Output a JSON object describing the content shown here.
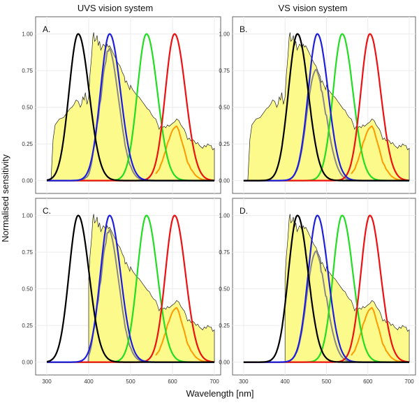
{
  "titles": {
    "left_column": "UVS vision system",
    "right_column": "VS vision system",
    "x_axis": "Wavelength [nm]",
    "y_axis": "Normalised sensitivity"
  },
  "axes": {
    "x_ticks": [
      300,
      400,
      500,
      600,
      700
    ],
    "y_ticks": [
      0.0,
      0.25,
      0.5,
      0.75,
      1.0
    ],
    "y_tick_labels": [
      "0.00",
      "0.25",
      "0.50",
      "0.75",
      "1.00"
    ],
    "xlim": [
      290,
      705
    ],
    "ylim": [
      -0.04,
      1.06
    ]
  },
  "chart_data": [
    {
      "type": "line",
      "panel_label": "A.",
      "column": "UVS vision system",
      "series": [
        {
          "id": "uv_cone",
          "peak": 375,
          "color": "#000000"
        },
        {
          "id": "s_cone",
          "peak": 450,
          "color": "#1f1fdd"
        },
        {
          "id": "m_cone",
          "peak": 538,
          "color": "#22dd22"
        },
        {
          "id": "l_cone",
          "peak": 605,
          "color": "#ee1111"
        }
      ],
      "filtered": {
        "s_cone": [
          450,
          0.92
        ]
      },
      "irradiance_cutoff": 310
    },
    {
      "type": "line",
      "panel_label": "B.",
      "column": "VS vision system",
      "series": [
        {
          "id": "v_cone",
          "peak": 430,
          "color": "#000000"
        },
        {
          "id": "s_cone",
          "peak": 478,
          "color": "#1f1fdd"
        },
        {
          "id": "m_cone",
          "peak": 538,
          "color": "#22dd22"
        },
        {
          "id": "l_cone",
          "peak": 605,
          "color": "#ee1111"
        }
      ],
      "irradiance_cutoff": 310
    },
    {
      "type": "line",
      "panel_label": "C.",
      "column": "UVS vision system",
      "series": [
        {
          "id": "uv_cone",
          "peak": 375,
          "color": "#000000"
        },
        {
          "id": "s_cone",
          "peak": 450,
          "color": "#1f1fdd"
        },
        {
          "id": "m_cone",
          "peak": 538,
          "color": "#22dd22"
        },
        {
          "id": "l_cone",
          "peak": 605,
          "color": "#ee1111"
        }
      ],
      "irradiance_cutoff": 400
    },
    {
      "type": "line",
      "panel_label": "D.",
      "column": "VS vision system",
      "series": [
        {
          "id": "v_cone",
          "peak": 430,
          "color": "#000000"
        },
        {
          "id": "s_cone",
          "peak": 478,
          "color": "#1f1fdd"
        },
        {
          "id": "m_cone",
          "peak": 538,
          "color": "#22dd22"
        },
        {
          "id": "l_cone",
          "peak": 605,
          "color": "#ee1111"
        }
      ],
      "irradiance_cutoff": 400
    }
  ],
  "irradiance_spectrum": [
    [
      310,
      0.0
    ],
    [
      315,
      0.28
    ],
    [
      320,
      0.38
    ],
    [
      330,
      0.42
    ],
    [
      340,
      0.43
    ],
    [
      345,
      0.45
    ],
    [
      350,
      0.47
    ],
    [
      355,
      0.49
    ],
    [
      360,
      0.5
    ],
    [
      365,
      0.52
    ],
    [
      370,
      0.55
    ],
    [
      375,
      0.54
    ],
    [
      380,
      0.5
    ],
    [
      383,
      0.52
    ],
    [
      386,
      0.57
    ],
    [
      389,
      0.55
    ],
    [
      392,
      0.6
    ],
    [
      396,
      0.52
    ],
    [
      400,
      0.57
    ],
    [
      403,
      0.72
    ],
    [
      407,
      0.85
    ],
    [
      410,
      0.98
    ],
    [
      412,
      1.01
    ],
    [
      414,
      0.95
    ],
    [
      417,
      0.96
    ],
    [
      420,
      0.99
    ],
    [
      423,
      0.92
    ],
    [
      426,
      0.95
    ],
    [
      429,
      0.89
    ],
    [
      432,
      0.91
    ],
    [
      435,
      0.93
    ],
    [
      438,
      0.92
    ],
    [
      441,
      0.9
    ],
    [
      444,
      0.93
    ],
    [
      447,
      0.91
    ],
    [
      450,
      0.92
    ],
    [
      455,
      0.89
    ],
    [
      460,
      0.86
    ],
    [
      465,
      0.83
    ],
    [
      470,
      0.8
    ],
    [
      475,
      0.78
    ],
    [
      480,
      0.74
    ],
    [
      485,
      0.71
    ],
    [
      487,
      0.67
    ],
    [
      490,
      0.68
    ],
    [
      494,
      0.65
    ],
    [
      498,
      0.62
    ],
    [
      500,
      0.65
    ],
    [
      505,
      0.62
    ],
    [
      510,
      0.6
    ],
    [
      515,
      0.58
    ],
    [
      520,
      0.57
    ],
    [
      525,
      0.55
    ],
    [
      530,
      0.53
    ],
    [
      535,
      0.51
    ],
    [
      540,
      0.49
    ],
    [
      545,
      0.48
    ],
    [
      550,
      0.45
    ],
    [
      555,
      0.43
    ],
    [
      560,
      0.42
    ],
    [
      565,
      0.38
    ],
    [
      568,
      0.35
    ],
    [
      572,
      0.37
    ],
    [
      576,
      0.36
    ],
    [
      580,
      0.37
    ],
    [
      584,
      0.36
    ],
    [
      588,
      0.38
    ],
    [
      592,
      0.37
    ],
    [
      596,
      0.38
    ],
    [
      600,
      0.39
    ],
    [
      605,
      0.4
    ],
    [
      610,
      0.42
    ],
    [
      615,
      0.41
    ],
    [
      620,
      0.38
    ],
    [
      625,
      0.36
    ],
    [
      628,
      0.35
    ],
    [
      632,
      0.32
    ],
    [
      636,
      0.28
    ],
    [
      640,
      0.29
    ],
    [
      644,
      0.27
    ],
    [
      648,
      0.28
    ],
    [
      652,
      0.27
    ],
    [
      656,
      0.25
    ],
    [
      660,
      0.26
    ],
    [
      664,
      0.24
    ],
    [
      668,
      0.23
    ],
    [
      672,
      0.22
    ],
    [
      676,
      0.24
    ],
    [
      680,
      0.23
    ],
    [
      684,
      0.25
    ],
    [
      688,
      0.24
    ],
    [
      692,
      0.24
    ],
    [
      696,
      0.21
    ],
    [
      700,
      0.22
    ]
  ],
  "colors": {
    "irradiance_fill": "#fdfa8c",
    "irradiance_stroke": "#222222",
    "filtered_curve": "#888888",
    "orange_tail": "#ff9900",
    "panel_bg": "#ffffff",
    "grid": "#ebebeb",
    "frame": "#666666"
  }
}
